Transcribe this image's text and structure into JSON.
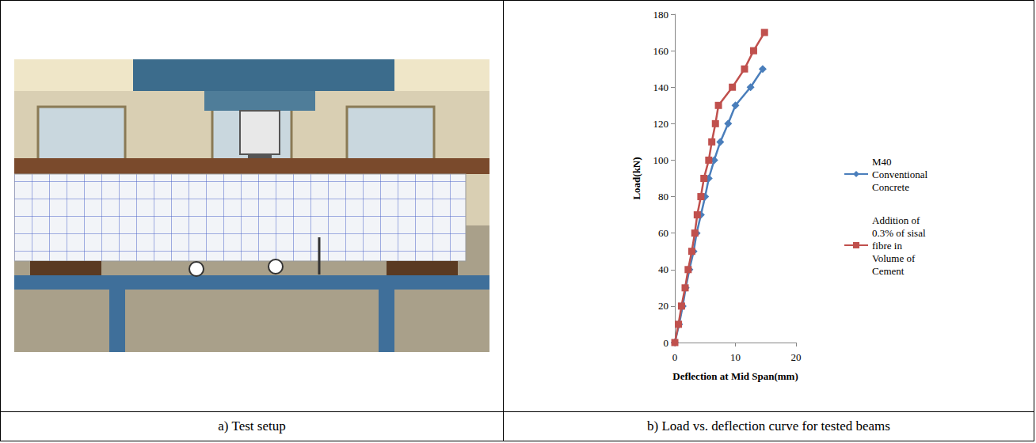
{
  "chart_data": {
    "type": "line",
    "xlabel": "Deflection at Mid Span(mm)",
    "ylabel": "Load(kN)",
    "xlim": [
      0,
      20
    ],
    "xticks": [
      0,
      10,
      20
    ],
    "ylim": [
      0,
      180
    ],
    "yticks": [
      0,
      20,
      40,
      60,
      80,
      100,
      120,
      140,
      160,
      180
    ],
    "grid": false,
    "legend": "right",
    "series": [
      {
        "name": "M40 Conventional Concrete",
        "color": "#4a7ebb",
        "marker": "diamond",
        "x": [
          0,
          0.7,
          1.3,
          1.8,
          2.4,
          3.1,
          3.6,
          4.3,
          5.0,
          5.6,
          6.5,
          7.5,
          8.8,
          10.0,
          12.5,
          14.5
        ],
        "values": [
          0,
          10,
          20,
          30,
          40,
          50,
          60,
          70,
          80,
          90,
          100,
          110,
          120,
          130,
          140,
          150
        ]
      },
      {
        "name": "Addition of 0.3% of sisal fibre in Volume of Cement",
        "color": "#c0504d",
        "marker": "square",
        "x": [
          0,
          0.6,
          1.1,
          1.7,
          2.2,
          2.8,
          3.3,
          3.7,
          4.3,
          4.8,
          5.6,
          6.1,
          6.7,
          7.2,
          9.5,
          11.5,
          13.0,
          14.8
        ],
        "values": [
          0,
          10,
          20,
          30,
          40,
          50,
          60,
          70,
          80,
          90,
          100,
          110,
          120,
          130,
          140,
          150,
          160,
          170
        ]
      }
    ]
  },
  "captions": [
    "a) Test setup",
    "b) Load vs. deflection curve for tested beams"
  ]
}
